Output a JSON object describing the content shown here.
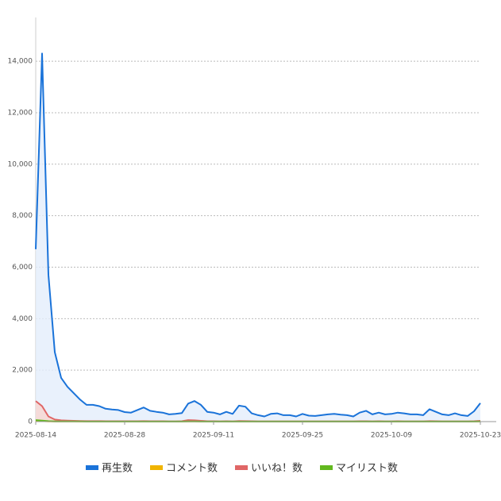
{
  "chart_data": {
    "type": "line",
    "x": [
      "2025-08-14",
      "2025-08-15",
      "2025-08-16",
      "2025-08-17",
      "2025-08-18",
      "2025-08-19",
      "2025-08-20",
      "2025-08-21",
      "2025-08-22",
      "2025-08-23",
      "2025-08-24",
      "2025-08-25",
      "2025-08-26",
      "2025-08-27",
      "2025-08-28",
      "2025-08-29",
      "2025-08-30",
      "2025-08-31",
      "2025-09-01",
      "2025-09-02",
      "2025-09-03",
      "2025-09-04",
      "2025-09-05",
      "2025-09-06",
      "2025-09-07",
      "2025-09-08",
      "2025-09-09",
      "2025-09-10",
      "2025-09-11",
      "2025-09-12",
      "2025-09-13",
      "2025-09-14",
      "2025-09-15",
      "2025-09-16",
      "2025-09-17",
      "2025-09-18",
      "2025-09-19",
      "2025-09-20",
      "2025-09-21",
      "2025-09-22",
      "2025-09-23",
      "2025-09-24",
      "2025-09-25",
      "2025-09-26",
      "2025-09-27",
      "2025-09-28",
      "2025-09-29",
      "2025-09-30",
      "2025-10-01",
      "2025-10-02",
      "2025-10-03",
      "2025-10-04",
      "2025-10-05",
      "2025-10-06",
      "2025-10-07",
      "2025-10-08",
      "2025-10-09",
      "2025-10-10",
      "2025-10-11",
      "2025-10-12",
      "2025-10-13",
      "2025-10-14",
      "2025-10-15",
      "2025-10-16",
      "2025-10-17",
      "2025-10-18",
      "2025-10-19",
      "2025-10-20",
      "2025-10-21",
      "2025-10-22",
      "2025-10-23"
    ],
    "series": [
      {
        "name": "再生数",
        "color": "#1a73d9",
        "fill": "#e3eefb",
        "values": [
          6700,
          14300,
          5700,
          2700,
          1700,
          1350,
          1100,
          850,
          650,
          650,
          600,
          500,
          470,
          450,
          370,
          350,
          450,
          550,
          420,
          380,
          350,
          280,
          300,
          330,
          700,
          800,
          650,
          380,
          350,
          280,
          380,
          300,
          620,
          580,
          320,
          250,
          200,
          300,
          320,
          250,
          250,
          200,
          300,
          230,
          220,
          250,
          280,
          300,
          270,
          250,
          200,
          350,
          420,
          280,
          350,
          280,
          300,
          350,
          320,
          280,
          280,
          250,
          480,
          380,
          280,
          250,
          320,
          250,
          220,
          400,
          720
        ]
      },
      {
        "name": "コメント数",
        "color": "#f0b400",
        "fill": "#fbeec4",
        "values": [
          30,
          20,
          10,
          5,
          5,
          5,
          5,
          3,
          3,
          3,
          3,
          3,
          3,
          3,
          3,
          3,
          3,
          3,
          3,
          3,
          3,
          3,
          3,
          3,
          5,
          5,
          3,
          3,
          3,
          3,
          3,
          3,
          3,
          3,
          3,
          3,
          3,
          3,
          3,
          3,
          3,
          3,
          3,
          3,
          3,
          3,
          3,
          3,
          3,
          3,
          3,
          3,
          3,
          3,
          3,
          3,
          3,
          3,
          3,
          3,
          3,
          3,
          3,
          3,
          3,
          3,
          3,
          3,
          3,
          3,
          3
        ]
      },
      {
        "name": "いいね！数",
        "color": "#e06666",
        "fill": "#f7d6d0",
        "values": [
          800,
          600,
          200,
          80,
          50,
          40,
          30,
          25,
          20,
          20,
          20,
          15,
          15,
          15,
          15,
          15,
          15,
          20,
          15,
          15,
          15,
          10,
          10,
          15,
          60,
          50,
          30,
          15,
          15,
          10,
          15,
          10,
          25,
          20,
          15,
          10,
          10,
          10,
          10,
          10,
          10,
          10,
          10,
          10,
          10,
          10,
          10,
          10,
          10,
          10,
          10,
          15,
          15,
          10,
          15,
          10,
          10,
          15,
          10,
          10,
          10,
          10,
          20,
          15,
          10,
          10,
          10,
          10,
          10,
          15,
          30
        ]
      },
      {
        "name": "マイリスト数",
        "color": "#62b81e",
        "fill": "#d8eec6",
        "values": [
          60,
          40,
          20,
          10,
          8,
          6,
          5,
          5,
          4,
          4,
          4,
          4,
          4,
          4,
          4,
          4,
          4,
          4,
          4,
          4,
          4,
          4,
          4,
          4,
          6,
          6,
          4,
          4,
          4,
          4,
          4,
          4,
          4,
          4,
          4,
          4,
          4,
          4,
          4,
          4,
          4,
          4,
          4,
          4,
          4,
          4,
          4,
          4,
          4,
          4,
          4,
          4,
          4,
          4,
          4,
          4,
          4,
          4,
          4,
          4,
          4,
          4,
          4,
          4,
          4,
          4,
          4,
          4,
          4,
          4,
          6
        ]
      }
    ],
    "ylim": [
      0,
      15700
    ],
    "yticks": [
      0,
      {
        "value": 2000,
        "label": "2,000"
      },
      {
        "value": 4000,
        "label": "4,000"
      },
      {
        "value": 6000,
        "label": "6,000"
      },
      {
        "value": 8000,
        "label": "8,000"
      },
      {
        "value": 10000,
        "label": "10,000"
      },
      {
        "value": 12000,
        "label": "12,000"
      },
      {
        "value": 14000,
        "label": "14,000"
      }
    ],
    "xticks": [
      "2025-08-14",
      "2025-08-28",
      "2025-09-11",
      "2025-09-25",
      "2025-10-09",
      "2025-10-23"
    ],
    "grid": true,
    "legend": "bottom"
  }
}
